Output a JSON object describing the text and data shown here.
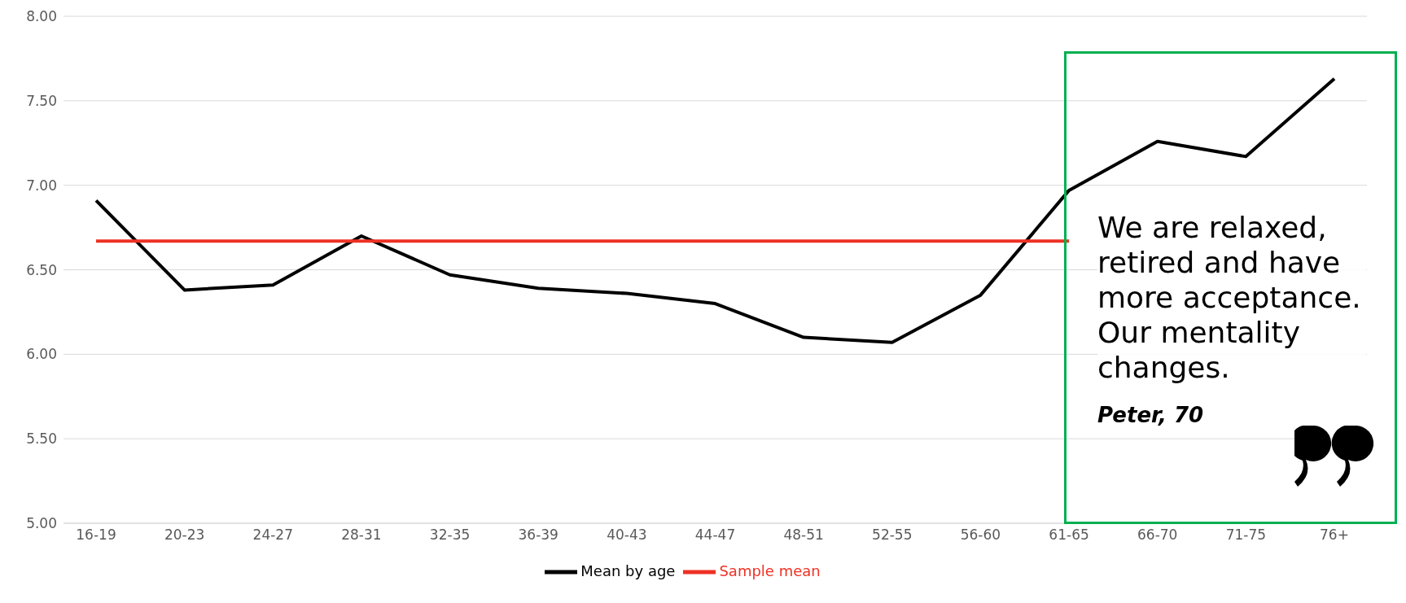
{
  "chart_data": {
    "type": "line",
    "categories": [
      "16-19",
      "20-23",
      "24-27",
      "28-31",
      "32-35",
      "36-39",
      "40-43",
      "44-47",
      "48-51",
      "52-55",
      "56-60",
      "61-65",
      "66-70",
      "71-75",
      "76+"
    ],
    "series": [
      {
        "name": "Mean by age",
        "color": "#000000",
        "values": [
          6.91,
          6.38,
          6.41,
          6.7,
          6.47,
          6.39,
          6.36,
          6.3,
          6.1,
          6.07,
          6.35,
          6.97,
          7.26,
          7.17,
          7.63
        ]
      },
      {
        "name": "Sample mean",
        "color": "#ee3124",
        "values": [
          6.67,
          6.67,
          6.67,
          6.67,
          6.67,
          6.67,
          6.67,
          6.67,
          6.67,
          6.67,
          6.67,
          6.67,
          null,
          null,
          null
        ]
      }
    ],
    "ylim": [
      5,
      8
    ],
    "yticks": [
      {
        "value": 5,
        "label": "5.00"
      },
      {
        "value": 5.5,
        "label": "5.50"
      },
      {
        "value": 6,
        "label": "6.00"
      },
      {
        "value": 6.5,
        "label": "6.50"
      },
      {
        "value": 7,
        "label": "7.00"
      },
      {
        "value": 7.5,
        "label": "7.50"
      },
      {
        "value": 8,
        "label": "8.00"
      }
    ],
    "grid": "y",
    "legend": "bottom",
    "marker": "none",
    "line_style": "solid",
    "annotations": [
      "We are relaxed, retired and have more acceptance. Our mentality changes.",
      "Peter, 70"
    ]
  }
}
